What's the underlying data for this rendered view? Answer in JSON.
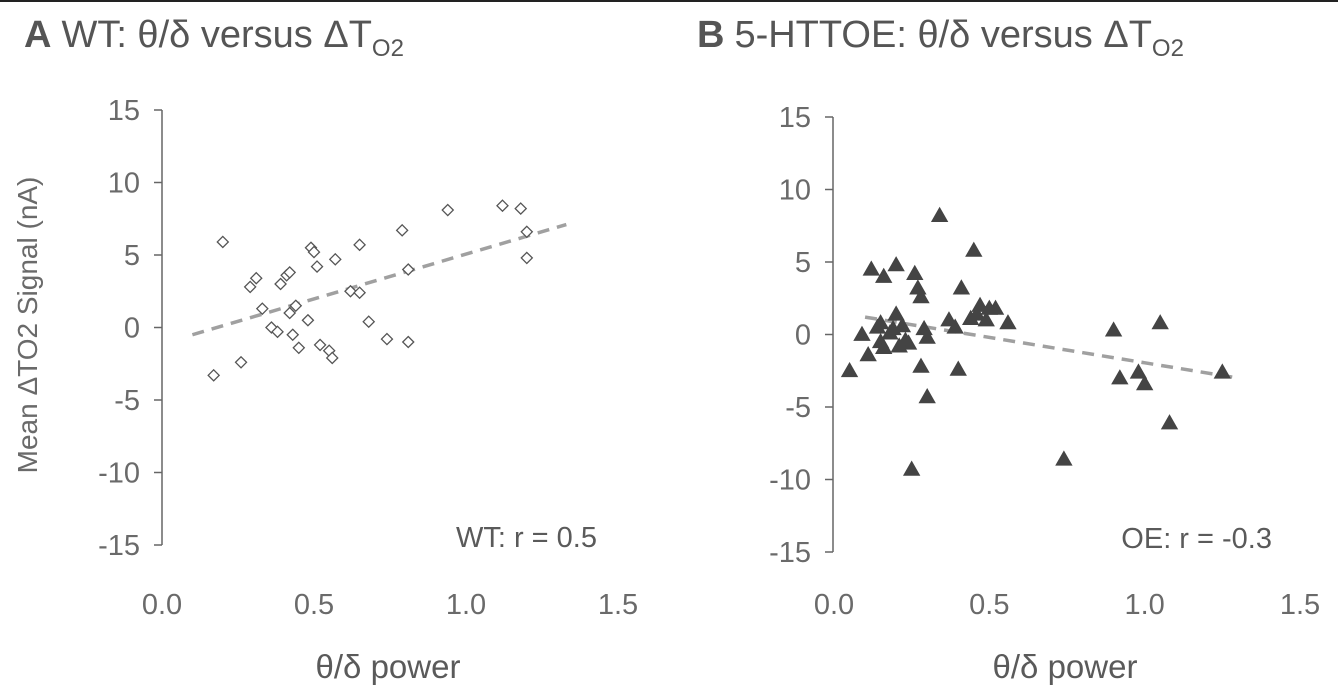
{
  "panels": [
    {
      "letter": "A",
      "title_main": "WT: θ/δ versus ΔT",
      "title_sub": "O2"
    },
    {
      "letter": "B",
      "title_main": "5-HTTOE: θ/δ versus ΔT",
      "title_sub": "O2"
    }
  ],
  "colors": {
    "text": "#555555",
    "axis": "#666666",
    "trendline": "#a0a0a0",
    "wt_marker_stroke": "#555555",
    "oe_marker_fill": "#444444"
  },
  "chart_data": [
    {
      "type": "scatter",
      "title": "WT: θ/δ versus ΔTO2",
      "xlabel": "θ/δ power",
      "ylabel": "Mean ΔTO2 Signal (nA)",
      "xlim": [
        0.0,
        1.5
      ],
      "ylim": [
        -15,
        15
      ],
      "xticks": [
        "0.0",
        "0.5",
        "1.0",
        "1.5"
      ],
      "yticks": [
        "15",
        "10",
        "5",
        "0",
        "-5",
        "-10",
        "-15"
      ],
      "marker": "open-diamond",
      "annotation": "WT: r =  0.5",
      "trendline": {
        "x": [
          0.1,
          1.33
        ],
        "y": [
          -0.5,
          7.1
        ]
      },
      "points": [
        [
          0.17,
          -3.3
        ],
        [
          0.2,
          5.9
        ],
        [
          0.26,
          -2.4
        ],
        [
          0.29,
          2.8
        ],
        [
          0.31,
          3.4
        ],
        [
          0.33,
          1.3
        ],
        [
          0.36,
          0.0
        ],
        [
          0.38,
          -0.3
        ],
        [
          0.39,
          3.0
        ],
        [
          0.41,
          3.6
        ],
        [
          0.42,
          3.8
        ],
        [
          0.42,
          1.0
        ],
        [
          0.43,
          -0.5
        ],
        [
          0.44,
          1.5
        ],
        [
          0.45,
          -1.4
        ],
        [
          0.48,
          0.5
        ],
        [
          0.49,
          5.5
        ],
        [
          0.5,
          5.2
        ],
        [
          0.51,
          4.2
        ],
        [
          0.52,
          -1.2
        ],
        [
          0.55,
          -1.6
        ],
        [
          0.56,
          -2.1
        ],
        [
          0.57,
          4.7
        ],
        [
          0.62,
          2.5
        ],
        [
          0.65,
          2.4
        ],
        [
          0.65,
          5.7
        ],
        [
          0.68,
          0.4
        ],
        [
          0.74,
          -0.8
        ],
        [
          0.79,
          6.7
        ],
        [
          0.81,
          4.0
        ],
        [
          0.81,
          -1.0
        ],
        [
          0.94,
          8.1
        ],
        [
          1.12,
          8.4
        ],
        [
          1.18,
          8.2
        ],
        [
          1.2,
          6.6
        ],
        [
          1.2,
          4.8
        ]
      ]
    },
    {
      "type": "scatter",
      "title": "5-HTTOE: θ/δ versus ΔTO2",
      "xlabel": "θ/δ power",
      "ylabel": "",
      "xlim": [
        0.0,
        1.5
      ],
      "ylim": [
        -15,
        15
      ],
      "xticks": [
        "0.0",
        "0.5",
        "1.0",
        "1.5"
      ],
      "yticks": [
        "15",
        "10",
        "5",
        "0",
        "-5",
        "-10",
        "-15"
      ],
      "marker": "filled-triangle",
      "annotation": "OE: r = -0.3",
      "trendline": {
        "x": [
          0.1,
          1.3
        ],
        "y": [
          1.2,
          -3.0
        ]
      },
      "points": [
        [
          0.05,
          -2.5
        ],
        [
          0.09,
          0.0
        ],
        [
          0.11,
          -1.4
        ],
        [
          0.12,
          4.5
        ],
        [
          0.14,
          0.5
        ],
        [
          0.15,
          0.8
        ],
        [
          0.15,
          -0.5
        ],
        [
          0.16,
          -0.9
        ],
        [
          0.16,
          4.0
        ],
        [
          0.18,
          0.1
        ],
        [
          0.19,
          0.4
        ],
        [
          0.2,
          1.4
        ],
        [
          0.2,
          4.8
        ],
        [
          0.21,
          -0.8
        ],
        [
          0.22,
          0.6
        ],
        [
          0.23,
          -0.4
        ],
        [
          0.24,
          -0.6
        ],
        [
          0.25,
          -9.3
        ],
        [
          0.26,
          4.2
        ],
        [
          0.27,
          3.2
        ],
        [
          0.28,
          2.6
        ],
        [
          0.28,
          -2.2
        ],
        [
          0.29,
          0.4
        ],
        [
          0.3,
          -4.3
        ],
        [
          0.3,
          -0.2
        ],
        [
          0.34,
          8.2
        ],
        [
          0.37,
          1.0
        ],
        [
          0.39,
          0.5
        ],
        [
          0.4,
          -2.4
        ],
        [
          0.41,
          3.2
        ],
        [
          0.44,
          1.1
        ],
        [
          0.45,
          5.8
        ],
        [
          0.46,
          1.4
        ],
        [
          0.47,
          2.0
        ],
        [
          0.49,
          1.0
        ],
        [
          0.5,
          1.8
        ],
        [
          0.52,
          1.8
        ],
        [
          0.56,
          0.8
        ],
        [
          0.74,
          -8.6
        ],
        [
          0.9,
          0.3
        ],
        [
          0.92,
          -3.0
        ],
        [
          0.98,
          -2.6
        ],
        [
          1.0,
          -3.4
        ],
        [
          1.05,
          0.8
        ],
        [
          1.08,
          -6.1
        ],
        [
          1.25,
          -2.6
        ]
      ]
    }
  ]
}
